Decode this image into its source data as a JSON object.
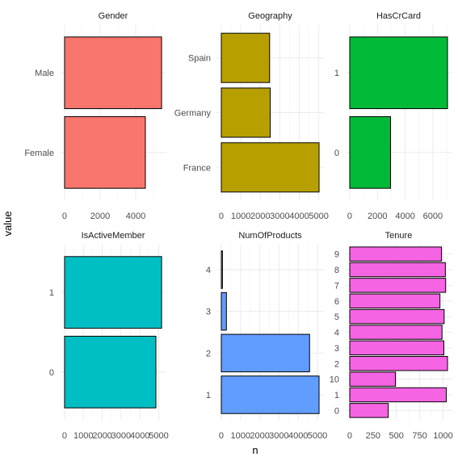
{
  "chart_data": {
    "type": "bar",
    "orientation": "horizontal",
    "xlabel": "n",
    "ylabel": "value",
    "grid": true,
    "facets": [
      {
        "title": "Gender",
        "color": "#F8766D",
        "categories": [
          "Female",
          "Male"
        ],
        "values": [
          4543,
          5457
        ],
        "xlim": [
          0,
          5457
        ],
        "xticks": [
          0,
          2000,
          4000
        ],
        "xtick_labels": [
          "0",
          "2000",
          "4000"
        ]
      },
      {
        "title": "Geography",
        "color": "#B79F00",
        "categories": [
          "France",
          "Germany",
          "Spain"
        ],
        "values": [
          5014,
          2509,
          2477
        ],
        "xlim": [
          0,
          5014
        ],
        "xticks": [
          0,
          1000,
          2000,
          3000,
          4000,
          5000
        ],
        "xtick_labels": [
          "0",
          "1000",
          "2000",
          "3000",
          "4000",
          "5000"
        ]
      },
      {
        "title": "HasCrCard",
        "color": "#00BA38",
        "categories": [
          "0",
          "1"
        ],
        "values": [
          2945,
          7055
        ],
        "xlim": [
          0,
          7055
        ],
        "xticks": [
          0,
          2000,
          4000,
          6000
        ],
        "xtick_labels": [
          "0",
          "2000",
          "4000",
          "6000"
        ]
      },
      {
        "title": "IsActiveMember",
        "color": "#00BFC4",
        "categories": [
          "0",
          "1"
        ],
        "values": [
          4849,
          5151
        ],
        "xlim": [
          0,
          5151
        ],
        "xticks": [
          0,
          1000,
          2000,
          3000,
          4000,
          5000
        ],
        "xtick_labels": [
          "0",
          "1000",
          "2000",
          "3000",
          "4000",
          "5000"
        ]
      },
      {
        "title": "NumOfProducts",
        "color": "#619CFF",
        "categories": [
          "1",
          "2",
          "3",
          "4"
        ],
        "values": [
          5084,
          4590,
          266,
          60
        ],
        "xlim": [
          0,
          5084
        ],
        "xticks": [
          0,
          1000,
          2000,
          3000,
          4000,
          5000
        ],
        "xtick_labels": [
          "0",
          "1000",
          "2000",
          "3000",
          "4000",
          "5000"
        ]
      },
      {
        "title": "Tenure",
        "color": "#F564E3",
        "categories": [
          "0",
          "1",
          "10",
          "2",
          "3",
          "4",
          "5",
          "6",
          "7",
          "8",
          "9"
        ],
        "values": [
          413,
          1035,
          490,
          1048,
          1009,
          989,
          1012,
          967,
          1028,
          1025,
          984
        ],
        "xlim": [
          0,
          1048
        ],
        "xticks": [
          0,
          250,
          500,
          750,
          1000
        ],
        "xtick_labels": [
          "0",
          "250",
          "500",
          "750",
          "1000"
        ]
      }
    ]
  }
}
